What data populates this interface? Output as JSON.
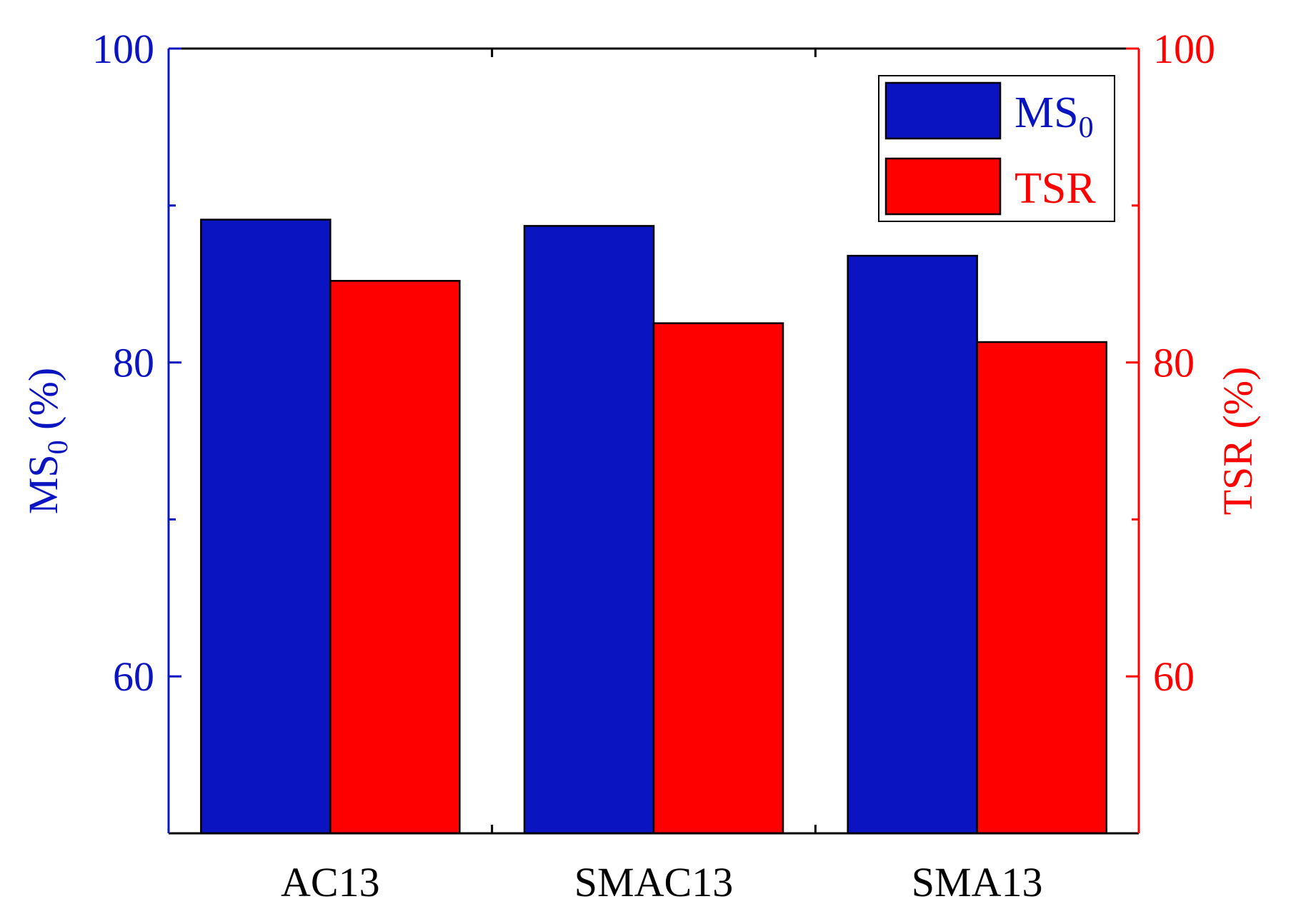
{
  "chart_data": {
    "type": "bar",
    "categories": [
      "AC13",
      "SMAC13",
      "SMA13"
    ],
    "series": [
      {
        "name": "MS0",
        "axis": "left",
        "color": "#0a14c0",
        "values": [
          89.1,
          88.7,
          86.8
        ]
      },
      {
        "name": "TSR",
        "axis": "right",
        "color": "#ff0000",
        "values": [
          85.2,
          82.5,
          81.3
        ]
      }
    ],
    "left_axis": {
      "label_main": "MS",
      "label_sub": "0",
      "label_unit": " (%)",
      "ylim": [
        50,
        100
      ],
      "ticks": [
        60,
        80,
        100
      ],
      "color": "#0a14c0"
    },
    "right_axis": {
      "label": "TSR (%)",
      "ylim": [
        50,
        100
      ],
      "ticks": [
        60,
        80,
        100
      ],
      "color": "#ff0000"
    },
    "legend": {
      "position": "top-right",
      "entries": [
        {
          "main": "MS",
          "sub": "0",
          "color": "#0a14c0"
        },
        {
          "main": "TSR",
          "sub": "",
          "color": "#ff0000"
        }
      ]
    },
    "grid": false
  }
}
